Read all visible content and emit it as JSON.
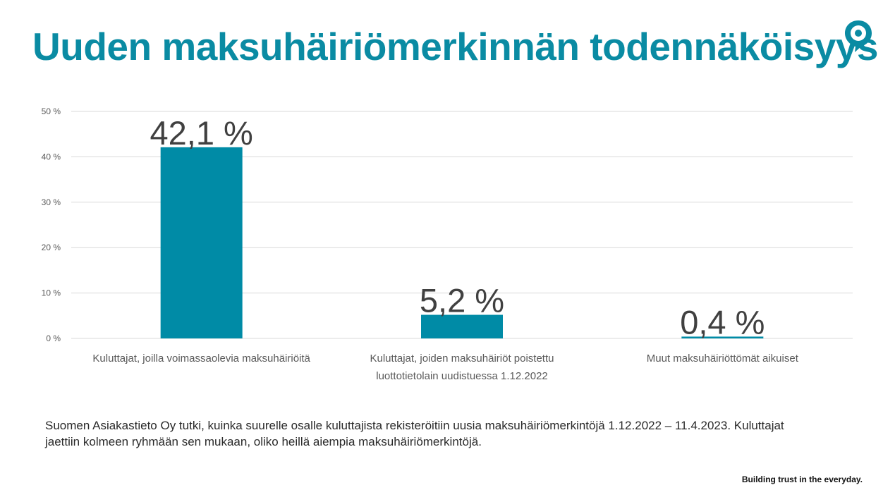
{
  "page": {
    "title": "Uuden maksuhäiriömerkinnän todennäköisyys",
    "footnote": "Suomen Asiakastieto Oy tutki, kuinka suurelle osalle kuluttajista rekisteröitiin uusia maksuhäiriömerkintöjä 1.12.2022 – 11.4.2023. Kuluttajat jaettiin kolmeen ryhmään sen mukaan, oliko heillä aiempia maksuhäiriömerkintöjä.",
    "tagline": "Building trust in the everyday.",
    "logo_icon": "location-pin-icon",
    "colors": {
      "title": "#0a8ba3",
      "bar": "#008ba6",
      "grid": "#d9d9d9"
    }
  },
  "chart_data": {
    "type": "bar",
    "categories": [
      [
        "Kuluttajat, joilla voimassaolevia maksuhäiriöitä"
      ],
      [
        "Kuluttajat, joiden maksuhäiriöt poistettu",
        "luottotietolain uudistuessa 1.12.2022"
      ],
      [
        "Muut maksuhäiriöttömät aikuiset"
      ]
    ],
    "values": [
      42.1,
      5.2,
      0.4
    ],
    "data_labels": [
      "42,1 %",
      "5,2 %",
      "0,4 %"
    ],
    "ylim": [
      0,
      50
    ],
    "yticks": [
      0,
      10,
      20,
      30,
      40,
      50
    ],
    "ytick_labels": [
      "0 %",
      "10 %",
      "20 %",
      "30 %",
      "40 %",
      "50 %"
    ],
    "grid": true,
    "legend": false
  }
}
